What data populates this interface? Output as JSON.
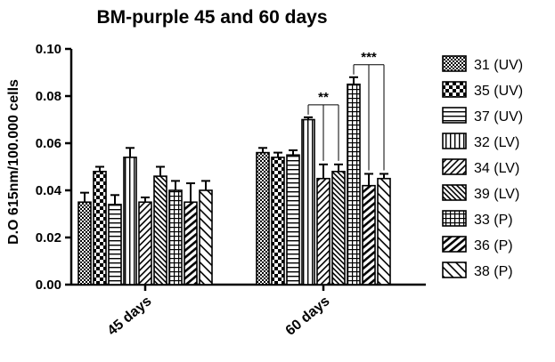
{
  "chart_data": {
    "type": "bar",
    "title": "BM-purple 45 and 60 days",
    "xlabel": "",
    "ylabel": "D.O 615nm/100.000 cells",
    "ylim": [
      0,
      0.1
    ],
    "yticks": [
      "0.00",
      "0.02",
      "0.04",
      "0.06",
      "0.08",
      "0.10"
    ],
    "grid": false,
    "legend_position": "right",
    "categories": [
      "45 days",
      "60 days"
    ],
    "series": [
      {
        "name": "31 (UV)",
        "pattern": "checker-small",
        "values": [
          0.035,
          0.056
        ],
        "errors": [
          0.004,
          0.002
        ]
      },
      {
        "name": "35 (UV)",
        "pattern": "checker-large",
        "values": [
          0.048,
          0.054
        ],
        "errors": [
          0.002,
          0.002
        ]
      },
      {
        "name": "37 (UV)",
        "pattern": "horizontal",
        "values": [
          0.034,
          0.055
        ],
        "errors": [
          0.004,
          0.002
        ]
      },
      {
        "name": "32 (LV)",
        "pattern": "vertical",
        "values": [
          0.054,
          0.07
        ],
        "errors": [
          0.004,
          0.001
        ]
      },
      {
        "name": "34 (LV)",
        "pattern": "diagonal-up",
        "values": [
          0.035,
          0.045
        ],
        "errors": [
          0.002,
          0.006
        ]
      },
      {
        "name": "39 (LV)",
        "pattern": "diagonal-down-dense",
        "values": [
          0.046,
          0.048
        ],
        "errors": [
          0.004,
          0.003
        ]
      },
      {
        "name": "33 (P)",
        "pattern": "grid",
        "values": [
          0.04,
          0.085
        ],
        "errors": [
          0.004,
          0.003
        ]
      },
      {
        "name": "36 (P)",
        "pattern": "diagonal-up-thick",
        "values": [
          0.035,
          0.042
        ],
        "errors": [
          0.008,
          0.005
        ]
      },
      {
        "name": "38 (P)",
        "pattern": "diagonal-down",
        "values": [
          0.04,
          0.045
        ],
        "errors": [
          0.004,
          0.002
        ]
      }
    ],
    "annotations": [
      {
        "text": "**",
        "category": "60 days",
        "from": "32 (LV)",
        "to": [
          "34 (LV)",
          "39 (LV)"
        ]
      },
      {
        "text": "***",
        "category": "60 days",
        "from": "33 (P)",
        "to": [
          "36 (P)",
          "38 (P)"
        ]
      }
    ]
  }
}
